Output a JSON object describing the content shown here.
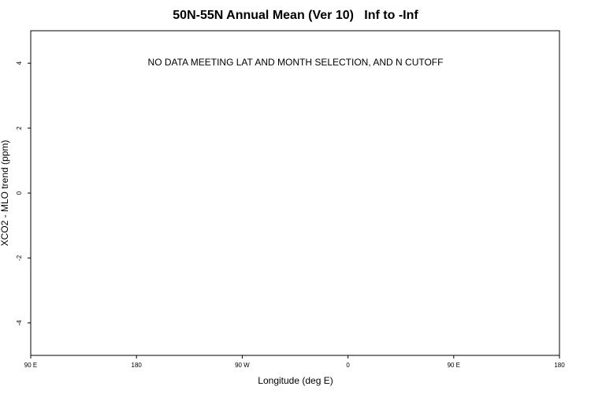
{
  "chart_data": {
    "type": "scatter",
    "title": "50N-55N Annual Mean (Ver 10)   Inf to -Inf",
    "x_label": "Longitude (deg E)",
    "y_label": "XCO2 - MLO trend (ppm)",
    "annotation": "NO DATA MEETING LAT AND MONTH SELECTION, AND N CUTOFF",
    "xlim": [
      90,
      540
    ],
    "xticks": [
      {
        "value": 90,
        "label": "90 E"
      },
      {
        "value": 180,
        "label": "180"
      },
      {
        "value": 270,
        "label": "90 W"
      },
      {
        "value": 360,
        "label": "0"
      },
      {
        "value": 450,
        "label": "90 E"
      },
      {
        "value": 540,
        "label": "180"
      }
    ],
    "ylim": [
      -5,
      5
    ],
    "yticks": [
      -4,
      -2,
      0,
      2,
      4
    ],
    "grid": false
  }
}
